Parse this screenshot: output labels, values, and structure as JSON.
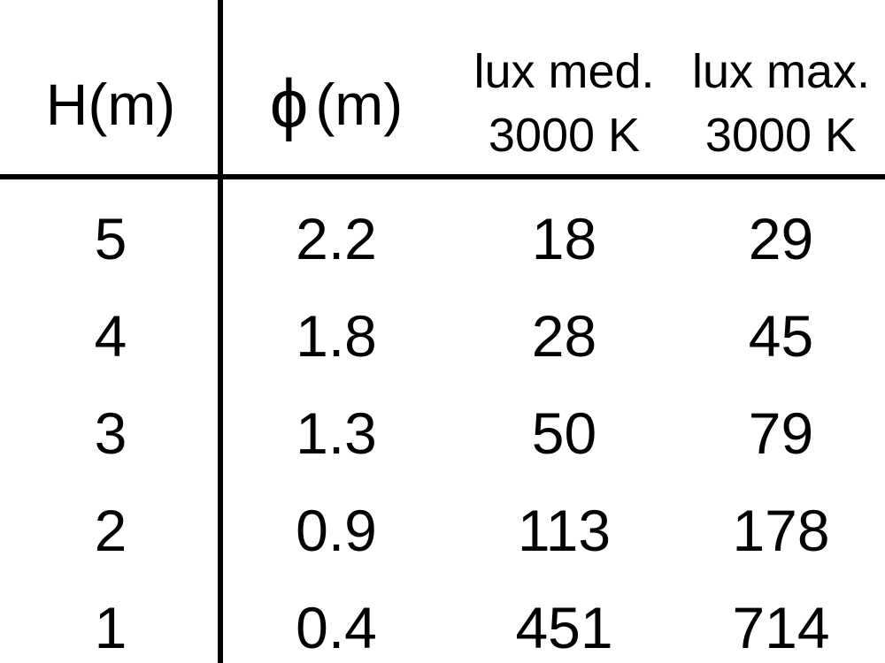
{
  "colors": {
    "background": "#ffffff",
    "text": "#000000",
    "rule": "#000000"
  },
  "header": {
    "h_label": "H(m)",
    "phi_symbol": "ϕ",
    "phi_suffix": "(m)",
    "lux_med_line1": "lux med.",
    "lux_med_line2": "3000 K",
    "lux_max_line1": "lux max.",
    "lux_max_line2": "3000 K"
  },
  "chart_data": {
    "type": "table",
    "title": "",
    "columns": [
      "H(m)",
      "ϕ(m)",
      "lux med. 3000 K",
      "lux max. 3000 K"
    ],
    "rows": [
      [
        "5",
        "2.2",
        "18",
        "29"
      ],
      [
        "4",
        "1.8",
        "28",
        "45"
      ],
      [
        "3",
        "1.3",
        "50",
        "79"
      ],
      [
        "2",
        "0.9",
        "113",
        "178"
      ],
      [
        "1",
        "0.4",
        "451",
        "714"
      ]
    ]
  }
}
